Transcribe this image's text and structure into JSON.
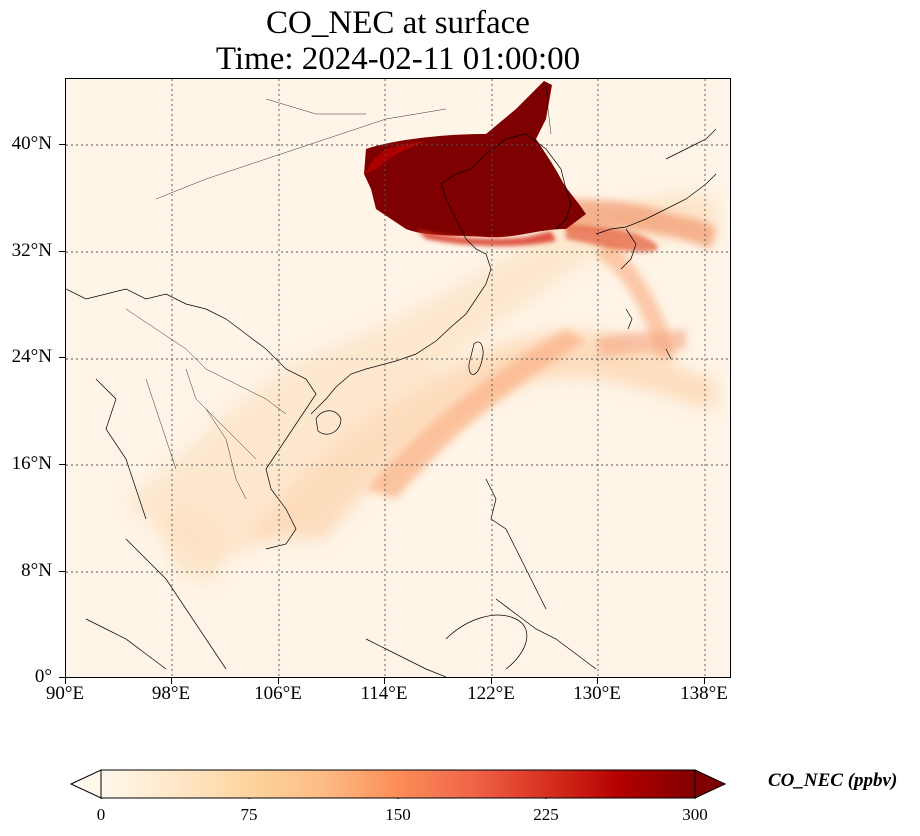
{
  "figure": {
    "title_line1": "CO_NEC at surface",
    "title_line2": "Time: 2024-02-11 01:00:00"
  },
  "map": {
    "projection": "PlateCarree",
    "lon_range": [
      90,
      140
    ],
    "lat_range": [
      0,
      45
    ],
    "gridlines": "dotted",
    "coastlines": true,
    "country_borders": true,
    "lon_ticks": [
      "90°E",
      "98°E",
      "106°E",
      "114°E",
      "122°E",
      "130°E",
      "138°E"
    ],
    "lat_ticks": [
      "0°",
      "8°N",
      "16°N",
      "24°N",
      "32°N",
      "40°N"
    ]
  },
  "colorbar": {
    "colormap": "OrRd",
    "colors": [
      "#fff7ec",
      "#fee8c8",
      "#fdd49e",
      "#fdbb84",
      "#fc8d59",
      "#ef6548",
      "#d7301f",
      "#b30000",
      "#7f0000"
    ],
    "ticks": [
      "0",
      "75",
      "150",
      "225",
      "300"
    ],
    "range": [
      0,
      300
    ],
    "extend": "both",
    "label": "CO_NEC (ppbv)"
  }
}
